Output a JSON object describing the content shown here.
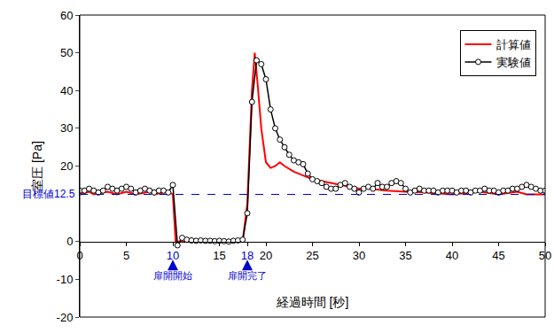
{
  "chart_data": {
    "type": "line",
    "x_label": "経過時間 [秒]",
    "y_label": "室圧 [Pa]",
    "xlim": [
      0,
      50
    ],
    "xticks": [
      0,
      5,
      10,
      15,
      18,
      20,
      25,
      30,
      35,
      40,
      45,
      50
    ],
    "ylim": [
      -20,
      60
    ],
    "yticks": [
      -20,
      -10,
      0,
      20,
      30,
      40,
      50,
      60
    ],
    "grid": false,
    "legend": "upper right",
    "series": [
      {
        "name": "計算値",
        "color": "#ff0000",
        "marker": "none",
        "line_style": "solid",
        "x": [
          0,
          1,
          1.5,
          3,
          4,
          5,
          6,
          7.5,
          8,
          9.5,
          10,
          10.3,
          17.5,
          18,
          18.5,
          18.8,
          19.1,
          19.5,
          20,
          20.5,
          21,
          21.5,
          22,
          23,
          24,
          25,
          26,
          27,
          28,
          29,
          30,
          31,
          33,
          35,
          37,
          40,
          43,
          45,
          47,
          48,
          50
        ],
        "values": [
          12.5,
          13.2,
          12.5,
          13.2,
          12.5,
          13.2,
          12.5,
          13.2,
          12.5,
          13.2,
          12.5,
          0,
          0,
          10,
          40,
          50,
          42,
          30,
          21,
          19.5,
          20,
          21,
          20,
          18.5,
          17.5,
          16.5,
          16,
          15.5,
          15,
          14.5,
          14,
          14,
          13.5,
          13.2,
          13,
          12.5,
          13.2,
          12.5,
          13.2,
          12.5,
          12.5
        ]
      },
      {
        "name": "実験値",
        "color": "#000000",
        "marker": "circle",
        "line_style": "solid",
        "x": [
          0,
          0.5,
          1,
          1.5,
          2,
          2.5,
          3,
          3.5,
          4,
          4.5,
          5,
          5.5,
          6,
          6.5,
          7,
          7.5,
          8,
          8.5,
          9,
          9.5,
          10,
          10.5,
          11,
          11.5,
          12,
          12.5,
          13,
          13.5,
          14,
          14.5,
          15,
          15.5,
          16,
          16.5,
          17,
          17.5,
          18,
          18.5,
          19,
          19.5,
          20,
          20.5,
          21,
          21.5,
          22,
          22.5,
          23,
          23.5,
          24,
          24.5,
          25,
          25.5,
          26,
          26.5,
          27,
          27.5,
          28,
          28.5,
          29,
          29.5,
          30,
          30.5,
          31,
          31.5,
          32,
          32.5,
          33,
          33.5,
          34,
          34.5,
          35,
          35.5,
          36,
          36.5,
          37,
          37.5,
          38,
          38.5,
          39,
          39.5,
          40,
          40.5,
          41,
          41.5,
          42,
          42.5,
          43,
          43.5,
          44,
          44.5,
          45,
          45.5,
          46,
          46.5,
          47,
          47.5,
          48,
          48.5,
          49,
          49.5,
          50
        ],
        "values": [
          13.5,
          13.5,
          14,
          13.5,
          13,
          13.5,
          14.5,
          14,
          13.5,
          14,
          14.5,
          14,
          13,
          13.5,
          14,
          13.5,
          13,
          13.5,
          13.5,
          13,
          15,
          -1,
          1,
          0.5,
          0.3,
          0.2,
          0.3,
          0.2,
          0.2,
          0.1,
          0.2,
          0.1,
          0,
          0.2,
          0.3,
          0.5,
          7.5,
          37,
          48,
          47,
          43,
          35,
          30,
          27,
          25,
          23,
          21.5,
          21,
          20.5,
          18,
          16.5,
          16,
          15.5,
          14.5,
          14,
          14,
          15,
          15.5,
          14.5,
          14,
          13,
          14,
          14.5,
          14,
          15.5,
          14.5,
          14.5,
          15.5,
          16,
          15.5,
          14,
          13,
          13.5,
          14,
          13.5,
          13.5,
          13.5,
          13,
          13.5,
          13.5,
          13.5,
          13,
          13.5,
          13.5,
          13,
          13.5,
          13.5,
          14,
          13.5,
          13.5,
          13,
          13.5,
          13.5,
          14,
          14,
          14.5,
          15,
          14.5,
          14,
          13.5,
          13.5
        ]
      }
    ],
    "reference_line": {
      "value": 12.5,
      "label": "目標値12.5",
      "color": "#0000cc",
      "line_style": "dashed"
    },
    "annotations": [
      {
        "x": 10,
        "text": "扉開開始",
        "color": "#0000cc"
      },
      {
        "x": 18,
        "text": "扉開完了",
        "color": "#0000cc"
      }
    ]
  }
}
